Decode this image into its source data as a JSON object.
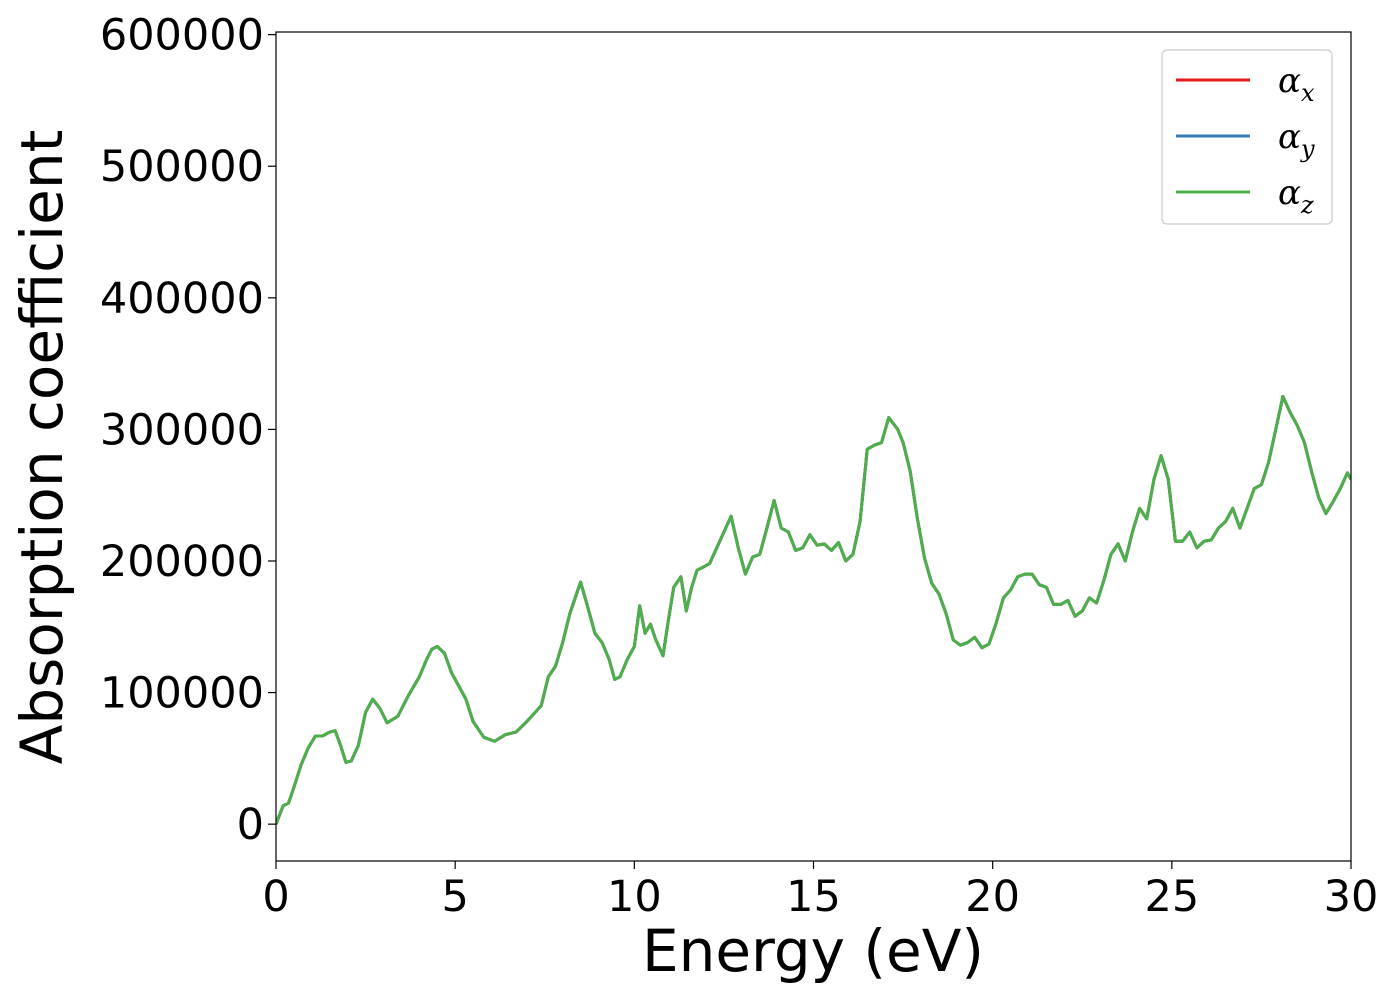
{
  "chart_data": {
    "type": "line",
    "title": "",
    "xlabel": "Energy (eV)",
    "ylabel": "Absorption coefficient",
    "xlim": [
      0,
      30
    ],
    "ylim": [
      -28000,
      602000
    ],
    "xticks": [
      0,
      5,
      10,
      15,
      20,
      25,
      30
    ],
    "yticks": [
      0,
      100000,
      200000,
      300000,
      400000,
      500000,
      600000
    ],
    "xtick_labels": [
      "0",
      "5",
      "10",
      "15",
      "20",
      "25",
      "30"
    ],
    "ytick_labels": [
      "0",
      "100000",
      "200000",
      "300000",
      "400000",
      "500000",
      "600000"
    ],
    "grid": false,
    "legend_position": "top-right",
    "x": [
      0,
      0.2,
      0.35,
      0.5,
      0.7,
      0.9,
      1.1,
      1.3,
      1.5,
      1.65,
      1.8,
      1.95,
      2.1,
      2.3,
      2.5,
      2.7,
      2.9,
      3.1,
      3.4,
      3.7,
      4.0,
      4.2,
      4.35,
      4.5,
      4.7,
      4.9,
      5.1,
      5.3,
      5.5,
      5.8,
      6.1,
      6.4,
      6.7,
      7.0,
      7.2,
      7.4,
      7.6,
      7.8,
      8.0,
      8.2,
      8.35,
      8.5,
      8.7,
      8.9,
      9.1,
      9.3,
      9.45,
      9.6,
      9.8,
      10.0,
      10.15,
      10.3,
      10.45,
      10.6,
      10.8,
      10.95,
      11.1,
      11.3,
      11.45,
      11.6,
      11.75,
      11.9,
      12.1,
      12.3,
      12.5,
      12.7,
      12.9,
      13.1,
      13.3,
      13.5,
      13.7,
      13.9,
      14.1,
      14.3,
      14.5,
      14.7,
      14.9,
      15.1,
      15.3,
      15.5,
      15.7,
      15.9,
      16.1,
      16.3,
      16.5,
      16.7,
      16.9,
      17.1,
      17.35,
      17.5,
      17.7,
      17.9,
      18.1,
      18.3,
      18.5,
      18.7,
      18.9,
      19.1,
      19.3,
      19.5,
      19.7,
      19.9,
      20.1,
      20.3,
      20.5,
      20.7,
      20.9,
      21.1,
      21.3,
      21.5,
      21.7,
      21.9,
      22.1,
      22.3,
      22.5,
      22.7,
      22.9,
      23.1,
      23.3,
      23.5,
      23.7,
      23.9,
      24.1,
      24.3,
      24.5,
      24.7,
      24.9,
      25.1,
      25.3,
      25.5,
      25.7,
      25.9,
      26.1,
      26.3,
      26.5,
      26.7,
      26.9,
      27.1,
      27.3,
      27.5,
      27.7,
      27.9,
      28.1,
      28.3,
      28.5,
      28.7,
      28.9,
      29.1,
      29.3,
      29.5,
      29.7,
      29.9,
      30.0
    ],
    "series": [
      {
        "name": "αx",
        "color": "#e41a1c",
        "values": [
          0,
          14000,
          16000,
          28000,
          45000,
          58000,
          67000,
          67000,
          70000,
          71000,
          60000,
          47000,
          48000,
          60000,
          85000,
          95000,
          88000,
          77000,
          82000,
          98000,
          112000,
          125000,
          133000,
          135000,
          130000,
          115000,
          105000,
          95000,
          78000,
          66000,
          63000,
          68000,
          70000,
          78000,
          84000,
          90000,
          112000,
          120000,
          138000,
          160000,
          172000,
          184000,
          165000,
          145000,
          138000,
          125000,
          110000,
          112000,
          125000,
          135000,
          166000,
          145000,
          152000,
          140000,
          128000,
          155000,
          180000,
          188000,
          162000,
          180000,
          193000,
          195000,
          198000,
          210000,
          222000,
          234000,
          210000,
          190000,
          203000,
          205000,
          225000,
          246000,
          225000,
          222000,
          208000,
          210000,
          220000,
          212000,
          213000,
          208000,
          214000,
          200000,
          205000,
          230000,
          285000,
          288000,
          290000,
          309000,
          300000,
          290000,
          268000,
          232000,
          202000,
          183000,
          175000,
          160000,
          140000,
          136000,
          138000,
          142000,
          134000,
          137000,
          153000,
          172000,
          178000,
          188000,
          190000,
          190000,
          182000,
          180000,
          167000,
          167000,
          170000,
          158000,
          162000,
          172000,
          168000,
          185000,
          205000,
          213000,
          200000,
          222000,
          240000,
          232000,
          262000,
          280000,
          262000,
          215000,
          215000,
          222000,
          210000,
          215000,
          216000,
          225000,
          230000,
          240000,
          225000,
          240000,
          255000,
          258000,
          275000,
          300000,
          325000,
          313000,
          303000,
          290000,
          268000,
          248000,
          236000,
          245000,
          255000,
          267000,
          262000
        ]
      },
      {
        "name": "αy",
        "color": "#377eb8",
        "values": [
          0,
          14000,
          16000,
          28000,
          45000,
          58000,
          67000,
          67000,
          70000,
          71000,
          60000,
          47000,
          48000,
          60000,
          85000,
          95000,
          88000,
          77000,
          82000,
          98000,
          112000,
          125000,
          133000,
          135000,
          130000,
          115000,
          105000,
          95000,
          78000,
          66000,
          63000,
          68000,
          70000,
          78000,
          84000,
          90000,
          112000,
          120000,
          138000,
          160000,
          172000,
          184000,
          165000,
          145000,
          138000,
          125000,
          110000,
          112000,
          125000,
          135000,
          166000,
          145000,
          152000,
          140000,
          128000,
          155000,
          180000,
          188000,
          162000,
          180000,
          193000,
          195000,
          198000,
          210000,
          222000,
          234000,
          210000,
          190000,
          203000,
          205000,
          225000,
          246000,
          225000,
          222000,
          208000,
          210000,
          220000,
          212000,
          213000,
          208000,
          214000,
          200000,
          205000,
          230000,
          285000,
          288000,
          290000,
          309000,
          300000,
          290000,
          268000,
          232000,
          202000,
          183000,
          175000,
          160000,
          140000,
          136000,
          138000,
          142000,
          134000,
          137000,
          153000,
          172000,
          178000,
          188000,
          190000,
          190000,
          182000,
          180000,
          167000,
          167000,
          170000,
          158000,
          162000,
          172000,
          168000,
          185000,
          205000,
          213000,
          200000,
          222000,
          240000,
          232000,
          262000,
          280000,
          262000,
          215000,
          215000,
          222000,
          210000,
          215000,
          216000,
          225000,
          230000,
          240000,
          225000,
          240000,
          255000,
          258000,
          275000,
          300000,
          325000,
          313000,
          303000,
          290000,
          268000,
          248000,
          236000,
          245000,
          255000,
          267000,
          262000
        ]
      },
      {
        "name": "αz",
        "color": "#4daf4a",
        "values": [
          0,
          14000,
          16000,
          28000,
          45000,
          58000,
          67000,
          67000,
          70000,
          71000,
          60000,
          47000,
          48000,
          60000,
          85000,
          95000,
          88000,
          77000,
          82000,
          98000,
          112000,
          125000,
          133000,
          135000,
          130000,
          115000,
          105000,
          95000,
          78000,
          66000,
          63000,
          68000,
          70000,
          78000,
          84000,
          90000,
          112000,
          120000,
          138000,
          160000,
          172000,
          184000,
          165000,
          145000,
          138000,
          125000,
          110000,
          112000,
          125000,
          135000,
          166000,
          145000,
          152000,
          140000,
          128000,
          155000,
          180000,
          188000,
          162000,
          180000,
          193000,
          195000,
          198000,
          210000,
          222000,
          234000,
          210000,
          190000,
          203000,
          205000,
          225000,
          246000,
          225000,
          222000,
          208000,
          210000,
          220000,
          212000,
          213000,
          208000,
          214000,
          200000,
          205000,
          230000,
          285000,
          288000,
          290000,
          309000,
          300000,
          290000,
          268000,
          232000,
          202000,
          183000,
          175000,
          160000,
          140000,
          136000,
          138000,
          142000,
          134000,
          137000,
          153000,
          172000,
          178000,
          188000,
          190000,
          190000,
          182000,
          180000,
          167000,
          167000,
          170000,
          158000,
          162000,
          172000,
          168000,
          185000,
          205000,
          213000,
          200000,
          222000,
          240000,
          232000,
          262000,
          280000,
          262000,
          215000,
          215000,
          222000,
          210000,
          215000,
          216000,
          225000,
          230000,
          240000,
          225000,
          240000,
          255000,
          258000,
          275000,
          300000,
          325000,
          313000,
          303000,
          290000,
          268000,
          248000,
          236000,
          245000,
          255000,
          267000,
          262000
        ]
      }
    ],
    "legend": [
      {
        "symbol": "α",
        "sub": "x",
        "color": "#e41a1c"
      },
      {
        "symbol": "α",
        "sub": "y",
        "color": "#377eb8"
      },
      {
        "symbol": "α",
        "sub": "z",
        "color": "#4daf4a"
      }
    ]
  }
}
